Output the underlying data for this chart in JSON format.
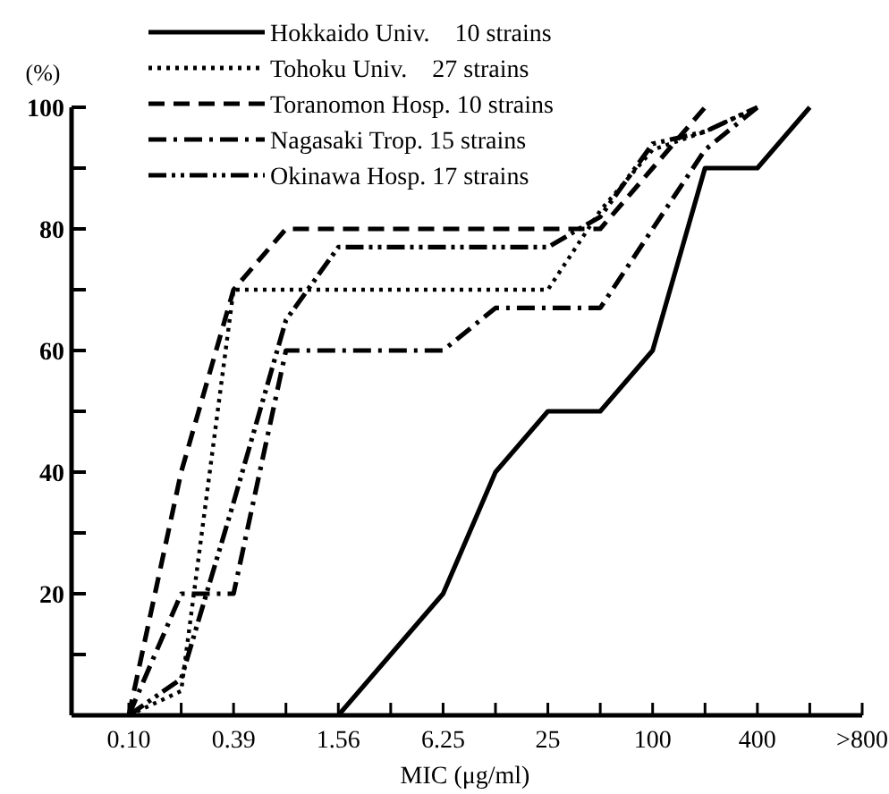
{
  "chart_data": {
    "type": "line",
    "xlabel": "MIC (μg/ml)",
    "ylabel": "(%)",
    "categories": [
      "0.10",
      null,
      "0.39",
      null,
      "1.56",
      null,
      "6.25",
      null,
      "25",
      null,
      "100",
      null,
      "400",
      null,
      ">800"
    ],
    "ylim": [
      0,
      100
    ],
    "yticks": [
      {
        "value": 10,
        "label": null
      },
      20,
      {
        "value": 30,
        "label": null
      },
      40,
      {
        "value": 50,
        "label": null
      },
      60,
      {
        "value": 70,
        "label": null
      },
      80,
      {
        "value": 90,
        "label": null
      },
      100
    ],
    "grid": false,
    "legend": "top",
    "marker": "none",
    "series": [
      {
        "name": "Hokkaido Univ.    10 strains",
        "color": "#000000",
        "line_style": "solid",
        "values": [
          null,
          null,
          null,
          null,
          0,
          10,
          20,
          40,
          50,
          50,
          60,
          90,
          90,
          100,
          null
        ]
      },
      {
        "name": "Tohoku Univ.    27 strains",
        "color": "#000000",
        "line_style": "dotted",
        "values": [
          0,
          4,
          70,
          70,
          70,
          70,
          70,
          70,
          70,
          83,
          93,
          96,
          100,
          null,
          null
        ]
      },
      {
        "name": "Toranomon Hosp. 10 strains",
        "color": "#000000",
        "line_style": "dashed",
        "values": [
          0,
          40,
          70,
          80,
          80,
          80,
          80,
          80,
          80,
          80,
          90,
          100,
          null,
          null,
          null
        ]
      },
      {
        "name": "Nagasaki Trop. 15 strains",
        "color": "#000000",
        "line_style": "dashdot",
        "values": [
          0,
          20,
          20,
          60,
          60,
          60,
          60,
          67,
          67,
          67,
          80,
          93,
          100,
          null,
          null
        ]
      },
      {
        "name": "Okinawa Hosp. 17 strains",
        "color": "#000000",
        "line_style": "dashdotdot",
        "values": [
          0,
          6,
          35,
          65,
          77,
          77,
          77,
          77,
          77,
          82,
          94,
          96,
          100,
          null,
          null
        ]
      }
    ]
  }
}
